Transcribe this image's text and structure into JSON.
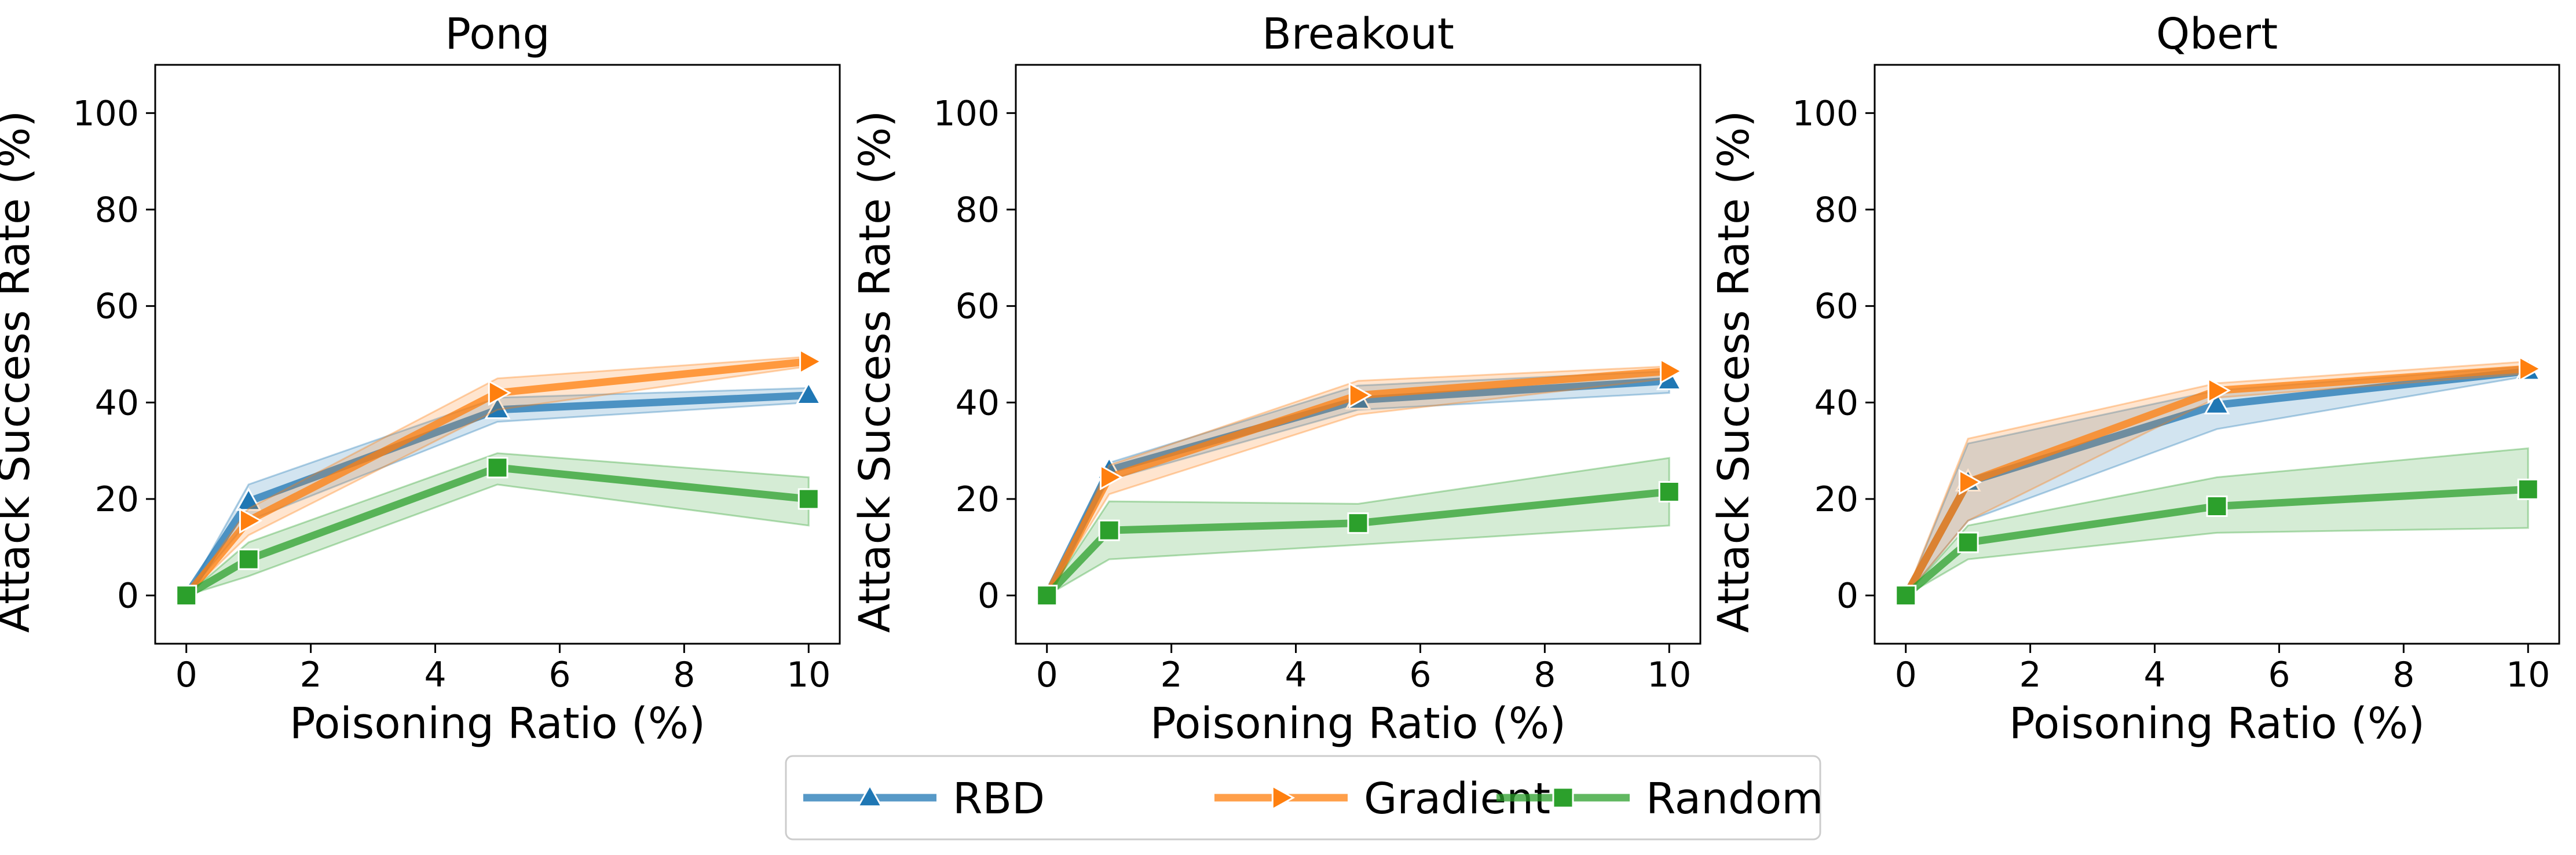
{
  "colors": {
    "RBD": "#1f77b4",
    "Gradient": "#ff7f0e",
    "Random": "#2ca02c"
  },
  "legend": {
    "placement": "bottom-center",
    "entries": [
      {
        "name": "RBD",
        "marker": "triangle-up"
      },
      {
        "name": "Gradient",
        "marker": "triangle-right"
      },
      {
        "name": "Random",
        "marker": "square"
      }
    ]
  },
  "chart_data": [
    {
      "type": "line",
      "title": "Pong",
      "xlabel": "Poisoning Ratio (%)",
      "ylabel": "Attack Success Rate (%)",
      "xlim": [
        -0.5,
        10.5
      ],
      "ylim": [
        -10,
        110
      ],
      "xticks": [
        0,
        2,
        4,
        6,
        8,
        10
      ],
      "yticks": [
        0,
        20,
        40,
        60,
        80,
        100
      ],
      "grid": false,
      "x": [
        0,
        1,
        5,
        10
      ],
      "series": [
        {
          "name": "RBD",
          "values": [
            0,
            19.5,
            38.5,
            41.5
          ],
          "lower": [
            0,
            15.5,
            36,
            40
          ],
          "upper": [
            0,
            23,
            41,
            43
          ]
        },
        {
          "name": "Gradient",
          "values": [
            0,
            15.5,
            42,
            48.5
          ],
          "lower": [
            0,
            12.5,
            38.5,
            47.5
          ],
          "upper": [
            0,
            18,
            45,
            49.5
          ]
        },
        {
          "name": "Random",
          "values": [
            0,
            7.5,
            26.5,
            20
          ],
          "lower": [
            0,
            4,
            23,
            14.5
          ],
          "upper": [
            0,
            11,
            29.5,
            24.5
          ]
        }
      ]
    },
    {
      "type": "line",
      "title": "Breakout",
      "xlabel": "Poisoning Ratio (%)",
      "ylabel": "Attack Success Rate (%)",
      "xlim": [
        -0.5,
        10.5
      ],
      "ylim": [
        -10,
        110
      ],
      "xticks": [
        0,
        2,
        4,
        6,
        8,
        10
      ],
      "yticks": [
        0,
        20,
        40,
        60,
        80,
        100
      ],
      "grid": false,
      "x": [
        0,
        1,
        5,
        10
      ],
      "series": [
        {
          "name": "RBD",
          "values": [
            0,
            26,
            40.5,
            44.5
          ],
          "lower": [
            0,
            24,
            38.5,
            42
          ],
          "upper": [
            0,
            27.5,
            43.5,
            46.5
          ]
        },
        {
          "name": "Gradient",
          "values": [
            0,
            24.5,
            41.5,
            46.5
          ],
          "lower": [
            0,
            21,
            37.5,
            45
          ],
          "upper": [
            0,
            27,
            44.5,
            47.5
          ]
        },
        {
          "name": "Random",
          "values": [
            0,
            13.5,
            15,
            21.5
          ],
          "lower": [
            0,
            7.5,
            10.5,
            14.5
          ],
          "upper": [
            0,
            19.5,
            19,
            28.5
          ]
        }
      ]
    },
    {
      "type": "line",
      "title": "Qbert",
      "xlabel": "Poisoning Ratio (%)",
      "ylabel": "Attack Success Rate (%)",
      "xlim": [
        -0.5,
        10.5
      ],
      "ylim": [
        -10,
        110
      ],
      "xticks": [
        0,
        2,
        4,
        6,
        8,
        10
      ],
      "yticks": [
        0,
        20,
        40,
        60,
        80,
        100
      ],
      "grid": false,
      "x": [
        0,
        1,
        5,
        10
      ],
      "series": [
        {
          "name": "RBD",
          "values": [
            0,
            23.5,
            39.5,
            46.5
          ],
          "lower": [
            0,
            15.5,
            34.5,
            45.5
          ],
          "upper": [
            0,
            31.5,
            42.5,
            47.5
          ]
        },
        {
          "name": "Gradient",
          "values": [
            0,
            23.5,
            42.5,
            47
          ],
          "lower": [
            0,
            15.5,
            41,
            46
          ],
          "upper": [
            0,
            32.5,
            44,
            48.5
          ]
        },
        {
          "name": "Random",
          "values": [
            0,
            11,
            18.5,
            22
          ],
          "lower": [
            0,
            7.5,
            13,
            14
          ],
          "upper": [
            0,
            14.5,
            24.5,
            30.5
          ]
        }
      ]
    }
  ]
}
